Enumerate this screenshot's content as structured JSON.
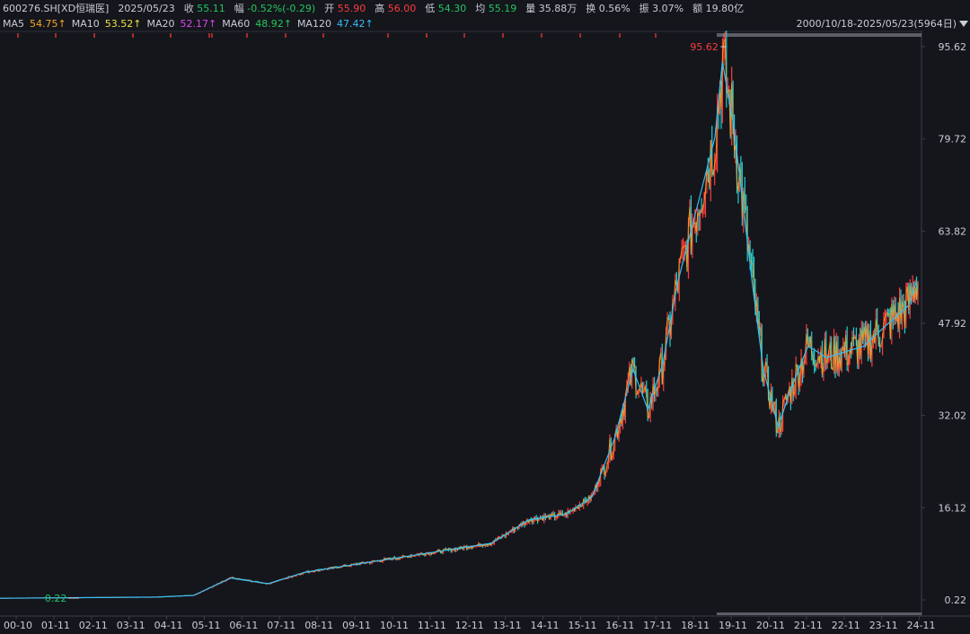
{
  "header": {
    "symbol": "600276.SH[XD恒瑞医]",
    "date": "2025/05/23",
    "close_label": "收",
    "close": "55.11",
    "change_label": "幅",
    "change": "-0.52%(-0.29)",
    "open_label": "开",
    "open": "55.90",
    "high_label": "高",
    "high": "56.00",
    "low_label": "低",
    "low": "54.30",
    "avg_label": "均",
    "avg": "55.19",
    "volume_label": "量",
    "volume": "35.88万",
    "turnover_label": "换",
    "turnover": "0.56%",
    "amplitude_label": "振",
    "amplitude": "3.07%",
    "amount_label": "额",
    "amount": "19.80亿"
  },
  "ma": [
    {
      "name": "MA5",
      "value": "54.75↑",
      "color": "#f5a623"
    },
    {
      "name": "MA10",
      "value": "53.52↑",
      "color": "#f0e040"
    },
    {
      "name": "MA20",
      "value": "52.17↑",
      "color": "#d946ef"
    },
    {
      "name": "MA60",
      "value": "48.92↑",
      "color": "#22c55e"
    },
    {
      "name": "MA120",
      "value": "47.42↑",
      "color": "#38bdf8"
    }
  ],
  "range_label": "2000/10/18-2025/05/23(5964日)",
  "colors": {
    "up": "#ff3b3b",
    "down": "#20d0d0",
    "ma5": "#f5a623",
    "ma120": "#38bdf8",
    "grid": "#3a3f4a"
  },
  "chart_data": {
    "type": "line",
    "y_ticks": [
      "95.62",
      "79.72",
      "63.82",
      "47.92",
      "32.02",
      "16.12",
      "0.22"
    ],
    "ylim": [
      0.22,
      95.62
    ],
    "x_ticks": [
      "00-10",
      "01-11",
      "02-11",
      "03-11",
      "04-11",
      "05-11",
      "06-11",
      "07-11",
      "08-11",
      "09-11",
      "10-11",
      "11-11",
      "12-11",
      "13-11",
      "14-11",
      "15-11",
      "16-11",
      "17-11",
      "18-11",
      "19-11",
      "20-11",
      "21-11",
      "22-11",
      "23-11",
      "24-11"
    ],
    "annotations": {
      "max_label": "95.62",
      "min_label": "0.22"
    },
    "series": [
      {
        "values": [
          [
            2000.8,
            0.5
          ],
          [
            2003,
            0.6
          ],
          [
            2005,
            0.7
          ],
          [
            2006,
            1
          ],
          [
            2007,
            4
          ],
          [
            2008,
            3
          ],
          [
            2009,
            5
          ],
          [
            2010,
            6
          ],
          [
            2011,
            7
          ],
          [
            2012,
            8
          ],
          [
            2013,
            9
          ],
          [
            2014,
            10
          ],
          [
            2015,
            14
          ],
          [
            2016,
            15
          ],
          [
            2016.7,
            18
          ],
          [
            2017.3,
            28
          ],
          [
            2017.8,
            40
          ],
          [
            2018.2,
            33
          ],
          [
            2018.6,
            41
          ],
          [
            2019,
            55
          ],
          [
            2019.6,
            70
          ],
          [
            2020,
            80
          ],
          [
            2020.2,
            93
          ],
          [
            2020.5,
            82
          ],
          [
            2021,
            55
          ],
          [
            2021.3,
            40
          ],
          [
            2021.7,
            30
          ],
          [
            2022,
            36
          ],
          [
            2022.5,
            44
          ],
          [
            2023,
            42
          ],
          [
            2023.5,
            43
          ],
          [
            2024,
            44
          ],
          [
            2024.5,
            47
          ],
          [
            2025.2,
            51
          ],
          [
            2025.4,
            55
          ]
        ]
      }
    ]
  }
}
